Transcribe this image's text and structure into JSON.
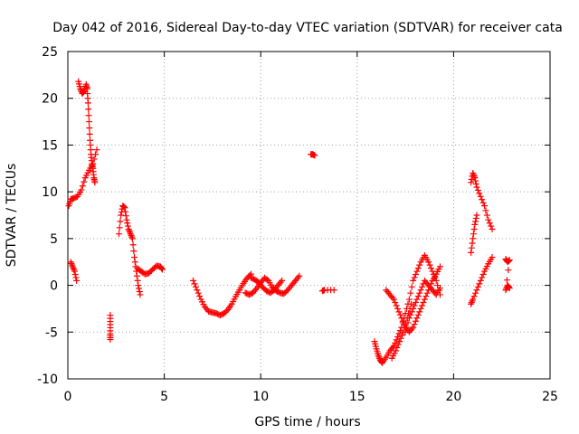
{
  "chart_data": {
    "type": "scatter",
    "title": "Day 042 of 2016, Sidereal Day-to-day VTEC variation (SDTVAR) for receiver cata",
    "xlabel": "GPS time / hours",
    "ylabel": "SDTVAR / TECUs",
    "xlim": [
      0,
      25
    ],
    "ylim": [
      -10,
      25
    ],
    "xticks": [
      0,
      5,
      10,
      15,
      20,
      25
    ],
    "yticks": [
      -10,
      -5,
      0,
      5,
      10,
      15,
      20,
      25
    ],
    "grid": true,
    "marker": "+",
    "color": "#ff0000",
    "segments": [
      {
        "x": [
          0.05,
          0.15,
          0.3,
          0.5,
          0.7,
          0.9,
          1.1,
          1.3,
          1.5
        ],
        "y": [
          8.5,
          9.2,
          9.3,
          9.5,
          10.2,
          11.5,
          12.3,
          13.0,
          14.5
        ]
      },
      {
        "x": [
          0.15,
          0.25,
          0.35,
          0.45
        ],
        "y": [
          2.5,
          2.0,
          1.5,
          0.5
        ]
      },
      {
        "x": [
          0.55,
          0.65,
          0.75,
          0.85,
          0.95,
          1.0,
          1.05,
          1.1,
          1.15,
          1.2,
          1.25,
          1.3,
          1.35,
          1.4
        ],
        "y": [
          21.8,
          21.0,
          20.5,
          20.8,
          21.5,
          21.0,
          19.5,
          17.5,
          15.5,
          14.0,
          13.0,
          12.5,
          11.5,
          11.0
        ]
      },
      {
        "x": [
          2.2,
          2.2,
          2.2,
          2.2
        ],
        "y": [
          -3.2,
          -4.2,
          -5.2,
          -5.8
        ]
      },
      {
        "x": [
          2.65,
          2.75,
          2.85,
          2.95,
          3.05,
          3.15,
          3.25,
          3.35,
          3.45,
          3.55,
          3.65,
          3.75
        ],
        "y": [
          5.5,
          7.5,
          8.5,
          8.3,
          7.0,
          6.0,
          5.5,
          5.0,
          3.0,
          1.5,
          0.0,
          -1.0
        ]
      },
      {
        "x": [
          3.6,
          3.8,
          4.0,
          4.2,
          4.4,
          4.6,
          4.8,
          4.9
        ],
        "y": [
          1.8,
          1.5,
          1.2,
          1.3,
          1.7,
          2.1,
          2.0,
          1.7
        ]
      },
      {
        "x": [
          6.5,
          6.7,
          6.9,
          7.1,
          7.3,
          7.5,
          7.7,
          7.9,
          8.1,
          8.3,
          8.5,
          8.7,
          8.9,
          9.1,
          9.3,
          9.5
        ],
        "y": [
          0.5,
          -0.5,
          -1.5,
          -2.3,
          -2.8,
          -2.9,
          -3.0,
          -3.2,
          -3.0,
          -2.6,
          -2.0,
          -1.2,
          -0.5,
          0.2,
          0.8,
          1.2
        ]
      },
      {
        "x": [
          9.2,
          9.4,
          9.6,
          9.8,
          10.0,
          10.2,
          10.4,
          10.6,
          10.8,
          11.0,
          11.2,
          11.4,
          11.6,
          11.8,
          12.0
        ],
        "y": [
          -0.8,
          -1.0,
          -0.8,
          -0.3,
          0.3,
          0.8,
          0.5,
          -0.2,
          -0.6,
          -0.8,
          -0.9,
          -0.5,
          0.0,
          0.5,
          1.0
        ]
      },
      {
        "x": [
          9.5,
          9.7,
          9.9,
          10.1,
          10.3,
          10.5,
          10.7,
          10.9,
          11.1
        ],
        "y": [
          0.8,
          0.6,
          0.3,
          -0.2,
          -0.6,
          -0.8,
          -0.5,
          0.0,
          0.5
        ]
      },
      {
        "x": [
          12.6,
          12.7,
          12.8
        ],
        "y": [
          14.0,
          14.0,
          13.9
        ]
      },
      {
        "x": [
          13.2,
          13.3,
          13.8
        ],
        "y": [
          -0.6,
          -0.5,
          -0.5
        ]
      },
      {
        "x": [
          15.9,
          16.0,
          16.1,
          16.2,
          16.3,
          16.5,
          16.7,
          16.9
        ],
        "y": [
          -6.0,
          -6.8,
          -7.5,
          -8.0,
          -8.3,
          -7.7,
          -7.0,
          -6.5
        ]
      },
      {
        "x": [
          16.5,
          16.7,
          16.9,
          17.1,
          17.3,
          17.5,
          17.7,
          17.9,
          18.1,
          18.3,
          18.5,
          18.7,
          18.9,
          19.1,
          19.3
        ],
        "y": [
          -0.5,
          -1.0,
          -1.5,
          -2.5,
          -3.5,
          -4.5,
          -5.0,
          -4.5,
          -3.5,
          -2.5,
          -1.5,
          -0.5,
          0.5,
          1.2,
          2.0
        ]
      },
      {
        "x": [
          16.9,
          17.1,
          17.3,
          17.5,
          17.7,
          17.9,
          18.1,
          18.3,
          18.5,
          18.7,
          18.9,
          19.1,
          19.3
        ],
        "y": [
          -6.5,
          -5.5,
          -4.5,
          -3.0,
          -1.5,
          0.5,
          1.5,
          2.5,
          3.2,
          2.5,
          1.5,
          0.5,
          -1.0
        ]
      },
      {
        "x": [
          17.5,
          17.7,
          17.9,
          18.1,
          18.3,
          18.5,
          18.7,
          18.9,
          19.1,
          19.3
        ],
        "y": [
          -5.0,
          -3.5,
          -2.5,
          -1.5,
          -0.5,
          0.5,
          0.0,
          -0.5,
          -1.0,
          -0.3
        ]
      },
      {
        "x": [
          16.8,
          17.0,
          17.2,
          17.4,
          17.6,
          17.8
        ],
        "y": [
          -7.8,
          -7.0,
          -6.0,
          -5.0,
          -3.5,
          -2.0
        ]
      },
      {
        "x": [
          20.9,
          21.0,
          21.1,
          21.2,
          21.4,
          21.6,
          21.8,
          22.0
        ],
        "y": [
          11.0,
          12.0,
          11.5,
          10.5,
          9.5,
          8.5,
          7.0,
          6.0
        ]
      },
      {
        "x": [
          20.9,
          21.0,
          21.1,
          21.2
        ],
        "y": [
          3.5,
          5.0,
          6.5,
          7.5
        ]
      },
      {
        "x": [
          20.9,
          21.0,
          21.2,
          21.4,
          21.6,
          21.8,
          22.0
        ],
        "y": [
          -2.0,
          -1.5,
          -0.5,
          0.5,
          1.5,
          2.3,
          3.0
        ]
      },
      {
        "x": [
          22.7,
          22.8,
          22.9,
          22.7,
          22.8,
          22.9
        ],
        "y": [
          2.8,
          2.5,
          2.7,
          -0.5,
          0.0,
          -0.3
        ]
      }
    ]
  }
}
